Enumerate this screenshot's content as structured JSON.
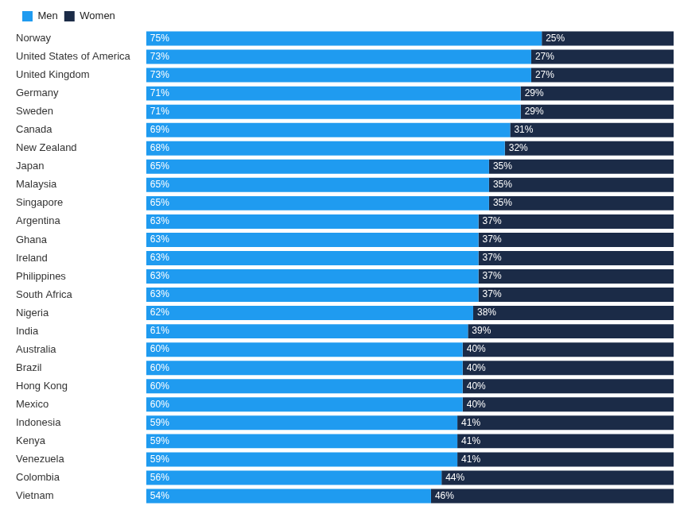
{
  "chart_data": {
    "type": "bar",
    "orientation": "horizontal",
    "stacked": true,
    "data_labels": true,
    "tick_labels": "y",
    "grid": false,
    "legend": "top-left",
    "categories": [
      "Norway",
      "United States of America",
      "United Kingdom",
      "Germany",
      "Sweden",
      "Canada",
      "New Zealand",
      "Japan",
      "Malaysia",
      "Singapore",
      "Argentina",
      "Ghana",
      "Ireland",
      "Philippines",
      "South Africa",
      "Nigeria",
      "India",
      "Australia",
      "Brazil",
      "Hong Kong",
      "Mexico",
      "Indonesia",
      "Kenya",
      "Venezuela",
      "Colombia",
      "Vietnam"
    ],
    "xlim": [
      0,
      100
    ],
    "series": [
      {
        "name": "Men",
        "color": "#1f9bf0",
        "values": [
          75,
          73,
          73,
          71,
          71,
          69,
          68,
          65,
          65,
          65,
          63,
          63,
          63,
          63,
          63,
          62,
          61,
          60,
          60,
          60,
          60,
          59,
          59,
          59,
          56,
          54
        ],
        "value_labels": [
          "75%",
          "73%",
          "73%",
          "71%",
          "71%",
          "69%",
          "68%",
          "65%",
          "65%",
          "65%",
          "63%",
          "63%",
          "63%",
          "63%",
          "63%",
          "62%",
          "61%",
          "60%",
          "60%",
          "60%",
          "60%",
          "59%",
          "59%",
          "59%",
          "56%",
          "54%"
        ]
      },
      {
        "name": "Women",
        "color": "#1b2b47",
        "values": [
          25,
          27,
          27,
          29,
          29,
          31,
          32,
          35,
          35,
          35,
          37,
          37,
          37,
          37,
          37,
          38,
          39,
          40,
          40,
          40,
          40,
          41,
          41,
          41,
          44,
          46
        ],
        "value_labels": [
          "25%",
          "27%",
          "27%",
          "29%",
          "29%",
          "31%",
          "32%",
          "35%",
          "35%",
          "35%",
          "37%",
          "37%",
          "37%",
          "37%",
          "37%",
          "38%",
          "39%",
          "40%",
          "40%",
          "40%",
          "40%",
          "41%",
          "41%",
          "41%",
          "44%",
          "46%"
        ]
      }
    ]
  }
}
